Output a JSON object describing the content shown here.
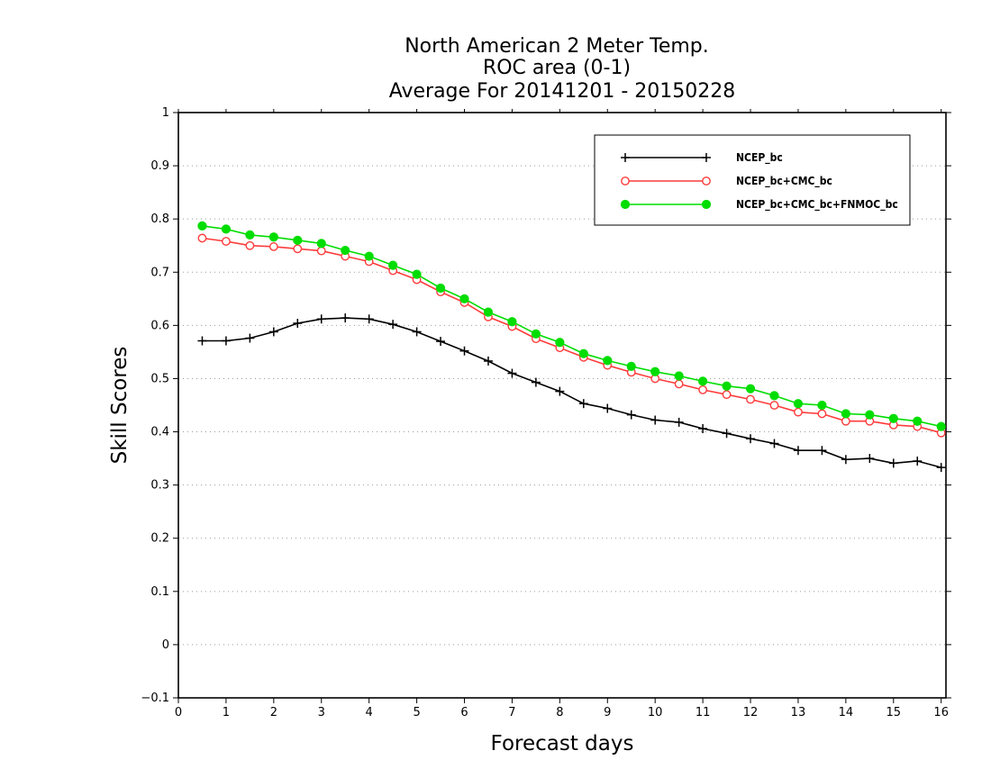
{
  "chart_data": {
    "type": "line",
    "title": [
      "North American 2 Meter Temp.",
      "ROC area (0-1)",
      "Average For 20141201 - 20150228"
    ],
    "xlabel": "Forecast days",
    "ylabel": "Skill Scores",
    "xlim": [
      0,
      16.1
    ],
    "ylim": [
      -0.1,
      1
    ],
    "x_ticks": [
      "0",
      "1",
      "2",
      "3",
      "4",
      "5",
      "6",
      "7",
      "8",
      "9",
      "10",
      "11",
      "12",
      "13",
      "14",
      "15",
      "16"
    ],
    "y_ticks": [
      "-0.1",
      "0",
      "0.1",
      "0.2",
      "0.3",
      "0.4",
      "0.5",
      "0.6",
      "0.7",
      "0.8",
      "0.9",
      "1"
    ],
    "grid": "horizontal dotted",
    "legend_position": "top-right",
    "x": [
      0.5,
      1,
      1.5,
      2,
      2.5,
      3,
      3.5,
      4,
      4.5,
      5,
      5.5,
      6,
      6.5,
      7,
      7.5,
      8,
      8.5,
      9,
      9.5,
      10,
      10.5,
      11,
      11.5,
      12,
      12.5,
      13,
      13.5,
      14,
      14.5,
      15,
      15.5,
      16
    ],
    "series": [
      {
        "name": "NCEP_bc",
        "color": "#000000",
        "marker": "plus",
        "values": [
          0.571,
          0.571,
          0.576,
          0.588,
          0.604,
          0.612,
          0.614,
          0.612,
          0.602,
          0.588,
          0.57,
          0.552,
          0.533,
          0.51,
          0.493,
          0.476,
          0.453,
          0.444,
          0.432,
          0.422,
          0.418,
          0.406,
          0.397,
          0.387,
          0.378,
          0.365,
          0.365,
          0.348,
          0.35,
          0.341,
          0.345,
          0.333
        ]
      },
      {
        "name": "NCEP_bc+CMC_bc",
        "color": "#ff3b3b",
        "marker": "open-circle",
        "values": [
          0.764,
          0.758,
          0.75,
          0.748,
          0.744,
          0.74,
          0.73,
          0.72,
          0.703,
          0.686,
          0.663,
          0.643,
          0.616,
          0.598,
          0.575,
          0.558,
          0.54,
          0.525,
          0.512,
          0.5,
          0.49,
          0.479,
          0.47,
          0.461,
          0.45,
          0.437,
          0.434,
          0.42,
          0.42,
          0.413,
          0.41,
          0.398
        ]
      },
      {
        "name": "NCEP_bc+CMC_bc+FNMOC_bc",
        "color": "#00dd00",
        "marker": "filled-circle",
        "values": [
          0.787,
          0.781,
          0.77,
          0.766,
          0.76,
          0.754,
          0.741,
          0.73,
          0.713,
          0.696,
          0.67,
          0.65,
          0.625,
          0.607,
          0.584,
          0.568,
          0.547,
          0.534,
          0.523,
          0.513,
          0.505,
          0.495,
          0.486,
          0.481,
          0.468,
          0.453,
          0.45,
          0.434,
          0.432,
          0.425,
          0.42,
          0.41
        ]
      }
    ]
  }
}
